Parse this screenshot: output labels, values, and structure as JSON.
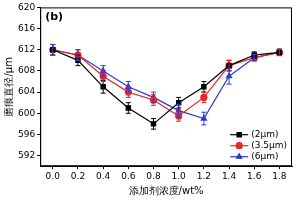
{
  "chart_data": {
    "type": "line",
    "title": "(b)",
    "x_label": "添加剂浓度/wt%",
    "y_label": "磨痕直径/μm",
    "x": [
      0.0,
      0.2,
      0.4,
      0.6,
      0.8,
      1.0,
      1.2,
      1.4,
      1.6,
      1.8
    ],
    "series": [
      {
        "name": "(2μm)",
        "color": "#000000",
        "marker": "square",
        "values": [
          612,
          610,
          605,
          601,
          598,
          602,
          605,
          609,
          611,
          611.5
        ],
        "errors": [
          1,
          1,
          1.2,
          1,
          1,
          1,
          1,
          1,
          0.6,
          0.6
        ]
      },
      {
        "name": "(3.5μm)",
        "color": "#e8262a",
        "marker": "circle",
        "values": [
          612,
          611,
          607,
          604,
          602.5,
          599.5,
          603,
          609,
          610.5,
          611.5
        ],
        "errors": [
          1,
          1,
          1,
          1,
          1,
          1,
          1,
          1,
          0.6,
          0.6
        ]
      },
      {
        "name": "(6μm)",
        "color": "#2b3bd6",
        "marker": "triangle",
        "values": [
          612,
          611,
          608,
          605,
          603,
          600.5,
          599,
          607,
          610.5,
          611.5
        ],
        "errors": [
          1,
          1,
          1,
          1,
          1,
          1.2,
          1.2,
          1.5,
          0.6,
          0.6
        ]
      }
    ],
    "xlim": [
      -0.1,
      1.9
    ],
    "xticks": [
      {
        "value": 0,
        "label": "0.0"
      },
      {
        "value": 0.2,
        "label": "0.2"
      },
      {
        "value": 0.4,
        "label": "0.4"
      },
      {
        "value": 0.6,
        "label": "0.6"
      },
      {
        "value": 0.8,
        "label": "0.8"
      },
      {
        "value": 1,
        "label": "1.0"
      },
      {
        "value": 1.2,
        "label": "1.2"
      },
      {
        "value": 1.4,
        "label": "1.4"
      },
      {
        "value": 1.6,
        "label": "1.6"
      },
      {
        "value": 1.8,
        "label": "1.8"
      }
    ],
    "ylim": [
      590,
      620
    ],
    "yticks": [
      592,
      596,
      600,
      604,
      608,
      612,
      616,
      620
    ],
    "grid": false,
    "legend": "lower right"
  }
}
